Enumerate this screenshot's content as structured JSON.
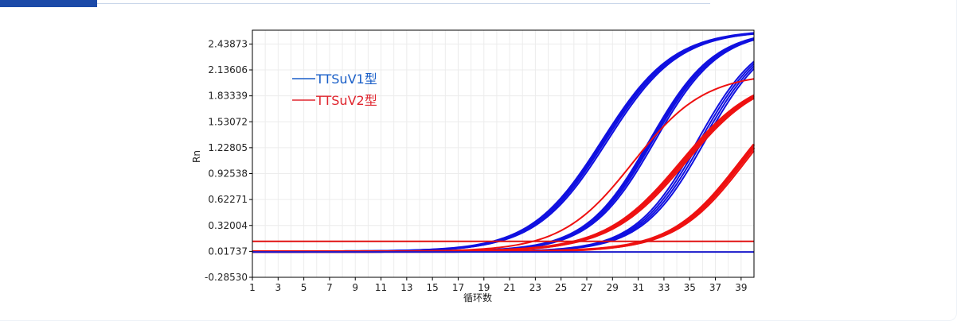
{
  "chart_data": {
    "type": "line",
    "xlabel": "循环数",
    "ylabel": "Rn",
    "xlim": [
      1,
      40
    ],
    "ylim": [
      -0.2853,
      2.6
    ],
    "x_ticks": [
      1,
      3,
      5,
      7,
      9,
      11,
      13,
      15,
      17,
      19,
      21,
      23,
      25,
      27,
      29,
      31,
      33,
      35,
      37,
      39
    ],
    "y_ticks": [
      -0.2853,
      0.01737,
      0.32004,
      0.62271,
      0.92538,
      1.22805,
      1.53072,
      1.83339,
      2.13606,
      2.43873
    ],
    "y_tick_labels": [
      "-0.28530",
      "0.01737",
      "0.32004",
      "0.62271",
      "0.92538",
      "1.22805",
      "1.53072",
      "1.83339",
      "2.13606",
      "2.43873"
    ],
    "grid": true,
    "legend_position": "top-left",
    "legend": [
      {
        "label": "TTSuV1型",
        "color": "#1a5fc8"
      },
      {
        "label": "TTSuV2型",
        "color": "#e0262f"
      }
    ],
    "series": [
      {
        "group": "TTSuV1",
        "color": "#1010e0",
        "width": 3,
        "baseline": 0.015,
        "plateau": 2.6,
        "midpoint": 28.2,
        "slope": 0.36
      },
      {
        "group": "TTSuV1",
        "color": "#1010e0",
        "width": 3,
        "baseline": 0.015,
        "plateau": 2.6,
        "midpoint": 28.4,
        "slope": 0.36
      },
      {
        "group": "TTSuV1",
        "color": "#1010e0",
        "width": 2,
        "baseline": 0.015,
        "plateau": 2.6,
        "midpoint": 28.6,
        "slope": 0.36
      },
      {
        "group": "TTSuV1",
        "color": "#1010e0",
        "width": 3,
        "baseline": 0.015,
        "plateau": 2.6,
        "midpoint": 31.9,
        "slope": 0.4
      },
      {
        "group": "TTSuV1",
        "color": "#1010e0",
        "width": 3,
        "baseline": 0.015,
        "plateau": 2.6,
        "midpoint": 32.1,
        "slope": 0.4
      },
      {
        "group": "TTSuV1",
        "color": "#1010e0",
        "width": 2,
        "baseline": 0.015,
        "plateau": 2.6,
        "midpoint": 32.3,
        "slope": 0.4
      },
      {
        "group": "TTSuV1",
        "color": "#1010e0",
        "width": 2,
        "baseline": 0.015,
        "plateau": 2.6,
        "midpoint": 35.6,
        "slope": 0.41
      },
      {
        "group": "TTSuV1",
        "color": "#1010e0",
        "width": 2,
        "baseline": 0.015,
        "plateau": 2.6,
        "midpoint": 35.8,
        "slope": 0.41
      },
      {
        "group": "TTSuV1",
        "color": "#1010e0",
        "width": 2,
        "baseline": 0.015,
        "plateau": 2.6,
        "midpoint": 36.0,
        "slope": 0.41
      },
      {
        "group": "TTSuV1",
        "color": "#1010e0",
        "width": 2,
        "baseline": 0.015,
        "plateau": 2.6,
        "midpoint": 36.2,
        "slope": 0.41
      },
      {
        "group": "TTSuV2",
        "color": "#ee1111",
        "width": 2,
        "baseline": 0.015,
        "plateau": 2.1,
        "midpoint": 30.6,
        "slope": 0.36
      },
      {
        "group": "TTSuV2",
        "color": "#ee1111",
        "width": 3,
        "baseline": 0.015,
        "plateau": 2.1,
        "midpoint": 34.3,
        "slope": 0.34
      },
      {
        "group": "TTSuV2",
        "color": "#ee1111",
        "width": 3,
        "baseline": 0.015,
        "plateau": 2.1,
        "midpoint": 34.5,
        "slope": 0.34
      },
      {
        "group": "TTSuV2",
        "color": "#ee1111",
        "width": 2,
        "baseline": 0.015,
        "plateau": 2.1,
        "midpoint": 34.7,
        "slope": 0.34
      },
      {
        "group": "TTSuV2",
        "color": "#ee1111",
        "width": 3,
        "baseline": 0.015,
        "plateau": 2.1,
        "midpoint": 38.9,
        "slope": 0.37
      },
      {
        "group": "TTSuV2",
        "color": "#ee1111",
        "width": 3,
        "baseline": 0.015,
        "plateau": 2.1,
        "midpoint": 39.1,
        "slope": 0.37
      },
      {
        "group": "TTSuV2",
        "color": "#ee1111",
        "width": 2,
        "baseline": 0.015,
        "plateau": 2.1,
        "midpoint": 39.3,
        "slope": 0.37
      }
    ],
    "thresholds": [
      {
        "group": "TTSuV2",
        "y": 0.135,
        "color": "#e01010"
      },
      {
        "group": "TTSuV1",
        "y": 0.01,
        "color": "#1a1acc"
      }
    ]
  }
}
